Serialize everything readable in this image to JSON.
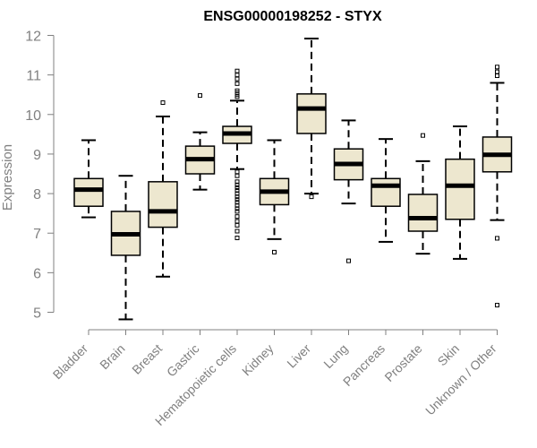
{
  "chart_data": {
    "type": "box",
    "title": "ENSG00000198252 - STYX",
    "ylabel": "Expression",
    "xlabel": "",
    "ylim": [
      4.7,
      12.1
    ],
    "yticks": [
      "5",
      "6",
      "7",
      "8",
      "9",
      "10",
      "11",
      "12"
    ],
    "grid": false,
    "colors": {
      "box_fill": "#ede7cf",
      "box_stroke": "#000000",
      "axis": "#808080",
      "tick_text": "#808080"
    },
    "categories": [
      "Bladder",
      "Brain",
      "Breast",
      "Gastric",
      "Hematopoietic cells",
      "Kidney",
      "Liver",
      "Lung",
      "Pancreas",
      "Prostate",
      "Skin",
      "Unknown / Other"
    ],
    "boxes": [
      {
        "category": "Bladder",
        "whisker_low": 7.4,
        "q1": 7.68,
        "median": 8.1,
        "q3": 8.38,
        "whisker_high": 9.35,
        "outliers": []
      },
      {
        "category": "Brain",
        "whisker_low": 4.82,
        "q1": 6.44,
        "median": 6.97,
        "q3": 7.55,
        "whisker_high": 8.45,
        "outliers": []
      },
      {
        "category": "Breast",
        "whisker_low": 5.9,
        "q1": 7.15,
        "median": 7.55,
        "q3": 8.3,
        "whisker_high": 9.95,
        "outliers": [
          10.3
        ]
      },
      {
        "category": "Gastric",
        "whisker_low": 8.1,
        "q1": 8.5,
        "median": 8.87,
        "q3": 9.2,
        "whisker_high": 9.55,
        "outliers": [
          10.48
        ]
      },
      {
        "category": "Hematopoietic cells",
        "whisker_low": 8.62,
        "q1": 9.27,
        "median": 9.52,
        "q3": 9.7,
        "whisker_high": 10.35,
        "outliers": [
          11.1,
          11.0,
          10.9,
          10.78,
          10.6,
          10.55,
          10.5,
          10.45,
          8.55,
          8.45,
          8.3,
          8.22,
          8.15,
          8.08,
          8.0,
          7.92,
          7.85,
          7.78,
          7.7,
          7.62,
          7.55,
          7.42,
          7.3,
          7.2,
          7.05,
          6.88
        ]
      },
      {
        "category": "Kidney",
        "whisker_low": 6.85,
        "q1": 7.72,
        "median": 8.05,
        "q3": 8.38,
        "whisker_high": 9.35,
        "outliers": [
          6.52
        ]
      },
      {
        "category": "Liver",
        "whisker_low": 8.0,
        "q1": 9.52,
        "median": 10.15,
        "q3": 10.52,
        "whisker_high": 11.92,
        "outliers": [
          7.92
        ]
      },
      {
        "category": "Lung",
        "whisker_low": 7.75,
        "q1": 8.35,
        "median": 8.75,
        "q3": 9.13,
        "whisker_high": 9.85,
        "outliers": [
          6.3
        ]
      },
      {
        "category": "Pancreas",
        "whisker_low": 6.78,
        "q1": 7.68,
        "median": 8.2,
        "q3": 8.38,
        "whisker_high": 9.38,
        "outliers": []
      },
      {
        "category": "Prostate",
        "whisker_low": 6.48,
        "q1": 7.05,
        "median": 7.38,
        "q3": 7.98,
        "whisker_high": 8.82,
        "outliers": [
          9.47
        ]
      },
      {
        "category": "Skin",
        "whisker_low": 6.35,
        "q1": 7.35,
        "median": 8.2,
        "q3": 8.87,
        "whisker_high": 9.7,
        "outliers": []
      },
      {
        "category": "Unknown / Other",
        "whisker_low": 7.33,
        "q1": 8.55,
        "median": 8.98,
        "q3": 9.43,
        "whisker_high": 10.8,
        "outliers": [
          11.2,
          11.08,
          10.98,
          6.87,
          5.18
        ]
      }
    ]
  }
}
